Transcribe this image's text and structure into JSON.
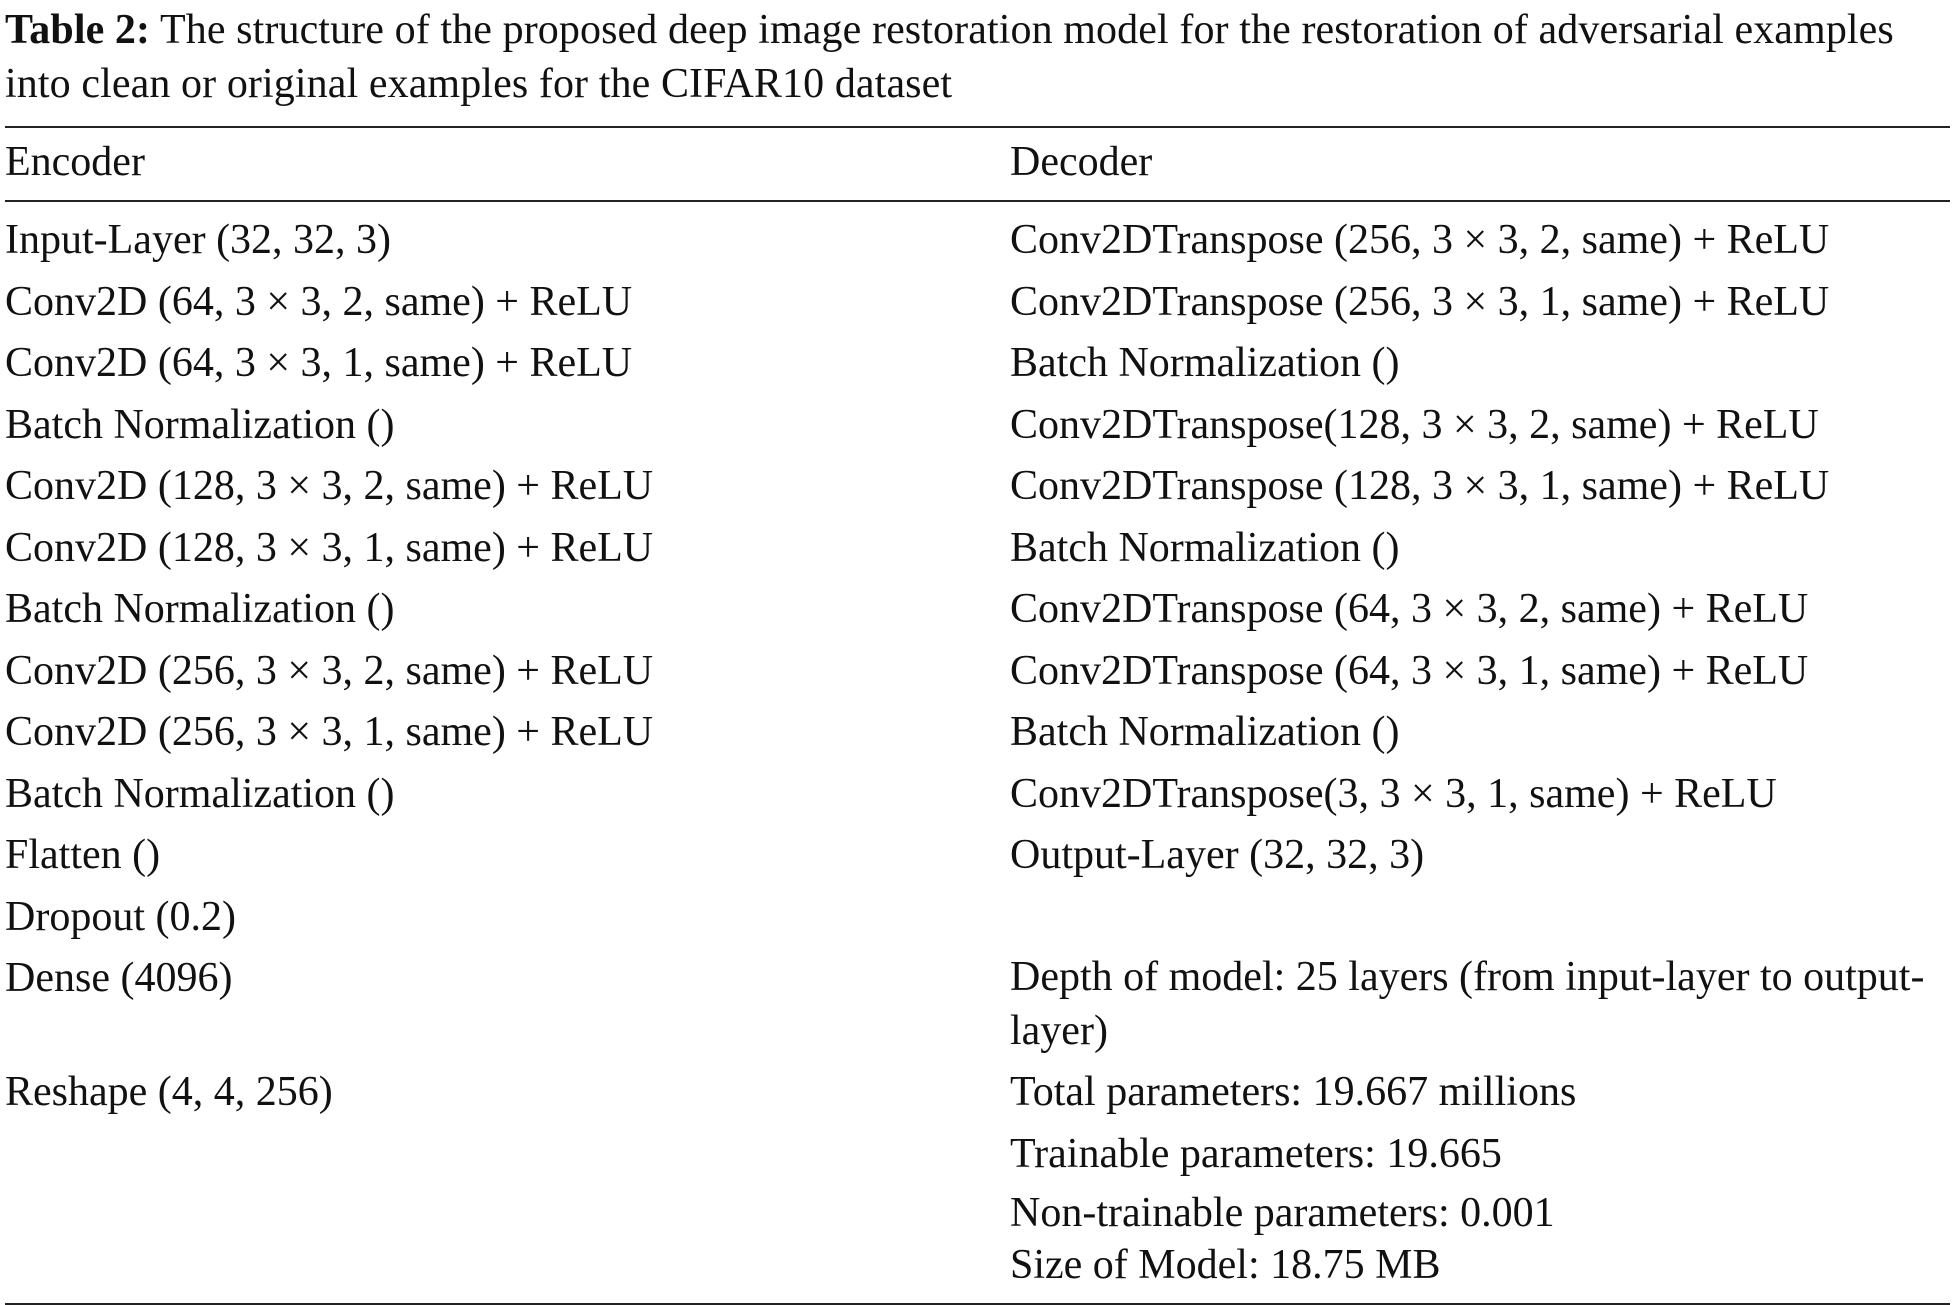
{
  "caption": {
    "label": "Table 2:",
    "text": "The structure of the proposed deep image restoration model for the restoration of adversarial examples into clean or original examples for the CIFAR10 dataset"
  },
  "table": {
    "headers": [
      "Encoder",
      "Decoder"
    ],
    "rows": [
      [
        "Input-Layer (32, 32, 3)",
        "Conv2DTranspose (256, 3 × 3, 2, same) + ReLU"
      ],
      [
        "Conv2D (64, 3 × 3, 2, same) + ReLU",
        "Conv2DTranspose (256, 3 × 3, 1, same) + ReLU"
      ],
      [
        "Conv2D (64, 3 × 3, 1, same) + ReLU",
        "Batch Normalization ()"
      ],
      [
        "Batch Normalization ()",
        "Conv2DTranspose(128, 3 × 3, 2, same) + ReLU"
      ],
      [
        "Conv2D (128, 3 × 3, 2, same) + ReLU",
        "Conv2DTranspose (128, 3 × 3, 1, same) + ReLU"
      ],
      [
        "Conv2D (128, 3 × 3, 1, same) + ReLU",
        "Batch Normalization ()"
      ],
      [
        "Batch Normalization ()",
        "Conv2DTranspose (64, 3 × 3, 2, same) + ReLU"
      ],
      [
        "Conv2D (256, 3 × 3, 2, same) + ReLU",
        "Conv2DTranspose (64, 3 × 3, 1, same) + ReLU"
      ],
      [
        "Conv2D (256, 3 × 3, 1, same) + ReLU",
        "Batch Normalization ()"
      ],
      [
        "Batch Normalization ()",
        "Conv2DTranspose(3, 3 × 3, 1, same) + ReLU"
      ],
      [
        "Flatten ()",
        "Output-Layer (32, 32, 3)"
      ],
      [
        "Dropout (0.2)",
        ""
      ],
      [
        "Dense (4096)",
        "Depth of model: 25 layers (from input-layer to output-layer)"
      ],
      [
        "Reshape (4, 4, 256)",
        "Total parameters: 19.667 millions"
      ],
      [
        "",
        "Trainable parameters: 19.665"
      ]
    ],
    "last_row": {
      "encoder": "",
      "decoder_lines": [
        "Non-trainable parameters: 0.001",
        "Size of Model: 18.75 MB"
      ]
    }
  }
}
